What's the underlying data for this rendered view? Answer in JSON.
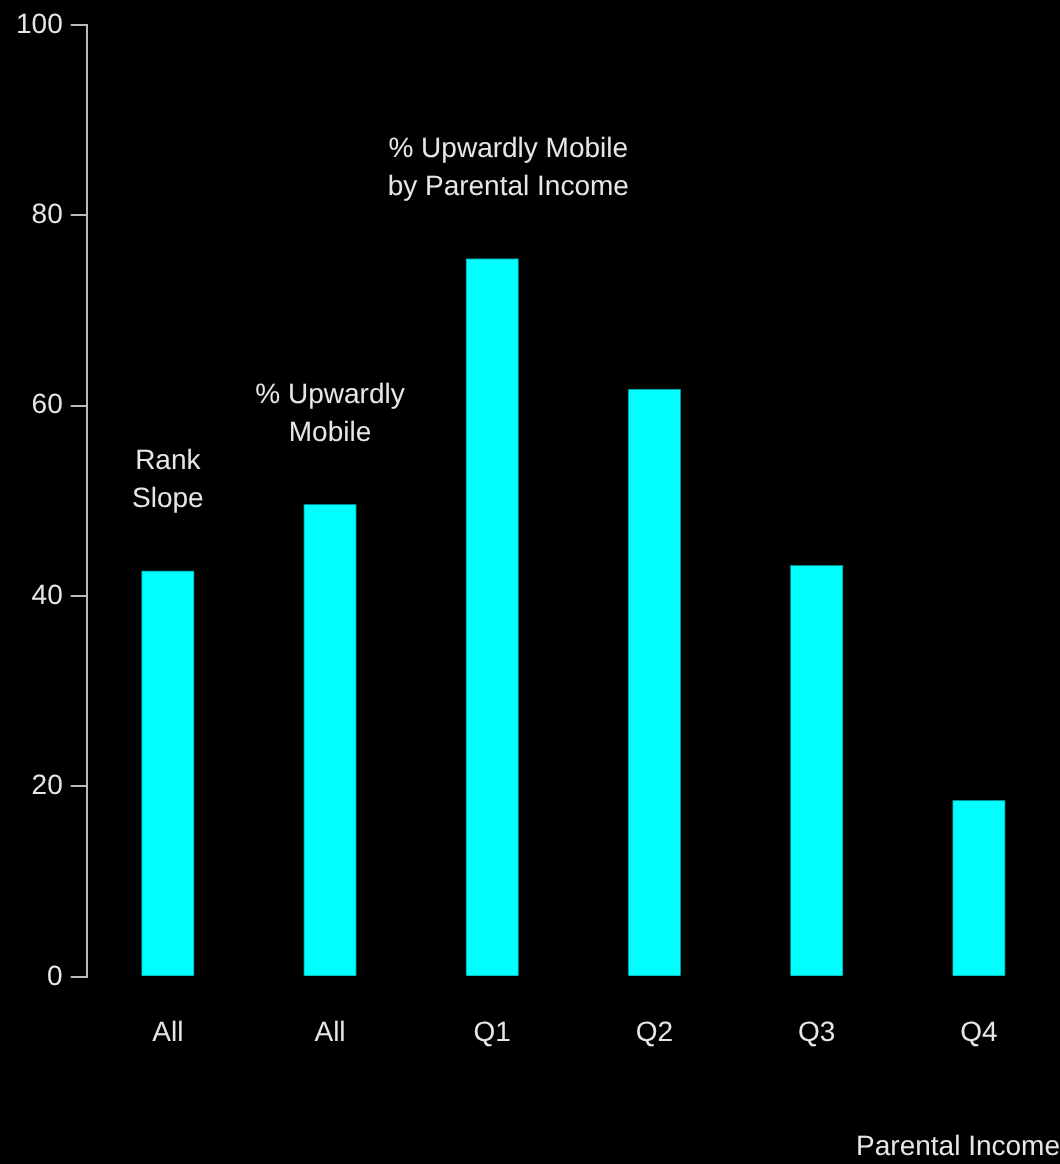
{
  "chart_data": {
    "type": "bar",
    "xlabel": "Parental Income",
    "categories": [
      "All",
      "All",
      "Q1",
      "Q2",
      "Q3",
      "Q4"
    ],
    "values": [
      42.6,
      49.6,
      75.4,
      61.7,
      43.2,
      18.5
    ],
    "color": "#00ffff",
    "ylim": [
      0,
      100
    ],
    "yticks": [
      0,
      20,
      40,
      60,
      80,
      100
    ],
    "annotations": [
      "Rank\nSlope",
      "% Upwardly\nMobile",
      "% Upwardly Mobile\nby Parental Income"
    ],
    "grid": false,
    "legend": false
  }
}
